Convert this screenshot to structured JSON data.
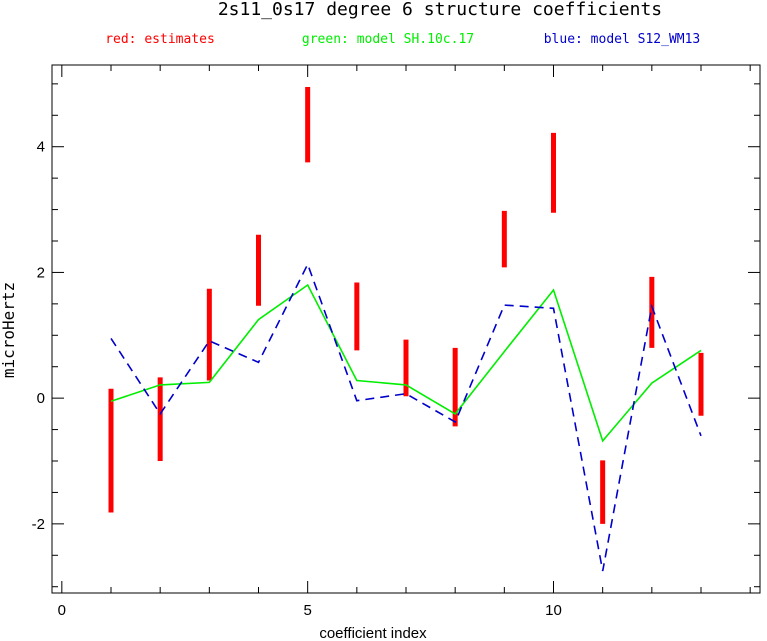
{
  "chart_data": {
    "type": "line",
    "title": "2s11_0s17 degree 6 structure coefficients",
    "xlabel": "coefficient index",
    "ylabel": "microHertz",
    "xlim": [
      -0.2,
      14.2
    ],
    "ylim": [
      -3.1,
      5.3
    ],
    "x_ticks": [
      0,
      5,
      10
    ],
    "y_ticks": [
      -2,
      0,
      2,
      4
    ],
    "legend": [
      {
        "label": "red: estimates",
        "color": "#ff0000"
      },
      {
        "label": "green: model SH.10c.17",
        "color": "#00ee00"
      },
      {
        "label": "blue: model S12_WM13",
        "color": "#0000cc"
      }
    ],
    "x": [
      1,
      2,
      3,
      4,
      5,
      6,
      7,
      8,
      9,
      10,
      11,
      12,
      13
    ],
    "estimates": [
      {
        "x": 1,
        "low": -1.82,
        "high": 0.15
      },
      {
        "x": 2,
        "low": -1.0,
        "high": 0.33
      },
      {
        "x": 3,
        "low": 0.28,
        "high": 1.74
      },
      {
        "x": 4,
        "low": 1.47,
        "high": 2.6
      },
      {
        "x": 5,
        "low": 3.75,
        "high": 4.95
      },
      {
        "x": 6,
        "low": 0.76,
        "high": 1.84
      },
      {
        "x": 7,
        "low": 0.03,
        "high": 0.93
      },
      {
        "x": 8,
        "low": -0.45,
        "high": 0.8
      },
      {
        "x": 9,
        "low": 2.08,
        "high": 2.98
      },
      {
        "x": 10,
        "low": 2.95,
        "high": 4.22
      },
      {
        "x": 11,
        "low": -2.0,
        "high": -0.99
      },
      {
        "x": 12,
        "low": 0.8,
        "high": 1.93
      },
      {
        "x": 13,
        "low": -0.28,
        "high": 0.72
      }
    ],
    "series": [
      {
        "name": "model SH.10c.17",
        "color": "#00ee00",
        "dash": "solid",
        "values": [
          -0.05,
          0.21,
          0.25,
          1.25,
          1.8,
          0.28,
          0.21,
          -0.25,
          0.74,
          1.72,
          -0.68,
          0.24,
          0.76
        ]
      },
      {
        "name": "model S12_WM13",
        "color": "#0000cc",
        "dash": "dashed",
        "values": [
          0.95,
          -0.25,
          0.91,
          0.57,
          2.13,
          -0.04,
          0.07,
          -0.38,
          1.48,
          1.43,
          -2.75,
          1.46,
          -0.6
        ]
      }
    ],
    "grid": false
  }
}
